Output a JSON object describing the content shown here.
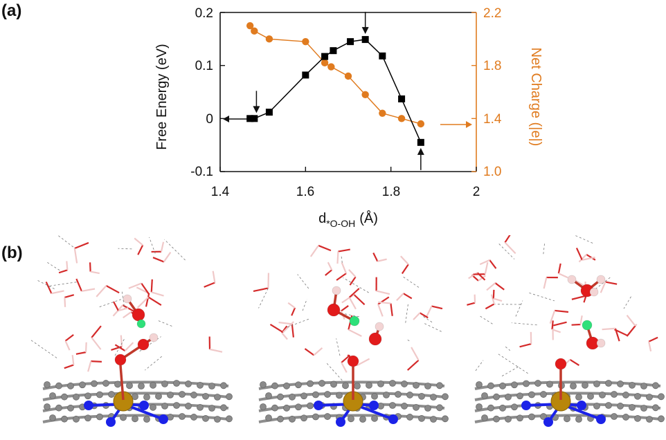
{
  "panel_labels": {
    "a": "(a)",
    "b": "(b)"
  },
  "colors": {
    "energy": "#000000",
    "charge": "#e07b1f"
  },
  "chart_data": {
    "type": "line",
    "xlabel_main": "d",
    "xlabel_sub": "*O-OH",
    "xlabel_unit": "(Å)",
    "ylabel_left": "Free Energy (eV)",
    "ylabel_right": "Net Charge (|e|)",
    "xlim": [
      1.4,
      2.0
    ],
    "ylim_left": [
      -0.1,
      0.2
    ],
    "ylim_right": [
      1.0,
      2.2
    ],
    "x_ticks": [
      "1.4",
      "1.6",
      "1.8",
      "2"
    ],
    "y_ticks_left": [
      "-0.1",
      "0",
      "0.1",
      "0.2"
    ],
    "y_ticks_right": [
      "1.0",
      "1.4",
      "1.8",
      "2.2"
    ],
    "series": [
      {
        "axis": "left",
        "marker": "square",
        "x": [
          1.47,
          1.48,
          1.515,
          1.6,
          1.645,
          1.665,
          1.705,
          1.74,
          1.78,
          1.825,
          1.87
        ],
        "y": [
          0.0,
          0.0,
          0.012,
          0.082,
          0.117,
          0.128,
          0.145,
          0.149,
          0.118,
          0.037,
          -0.045
        ]
      },
      {
        "axis": "right",
        "marker": "circle",
        "x": [
          1.47,
          1.48,
          1.515,
          1.6,
          1.645,
          1.66,
          1.7,
          1.74,
          1.78,
          1.825,
          1.87
        ],
        "y": [
          2.1,
          2.06,
          2.0,
          1.98,
          1.82,
          1.79,
          1.72,
          1.58,
          1.44,
          1.4,
          1.36
        ]
      }
    ],
    "arrows": [
      {
        "x": 1.485,
        "y": 0.0,
        "direction": "down"
      },
      {
        "x": 1.74,
        "y": 0.149,
        "direction": "down"
      },
      {
        "x": 1.87,
        "y": -0.045,
        "direction": "up"
      }
    ]
  }
}
